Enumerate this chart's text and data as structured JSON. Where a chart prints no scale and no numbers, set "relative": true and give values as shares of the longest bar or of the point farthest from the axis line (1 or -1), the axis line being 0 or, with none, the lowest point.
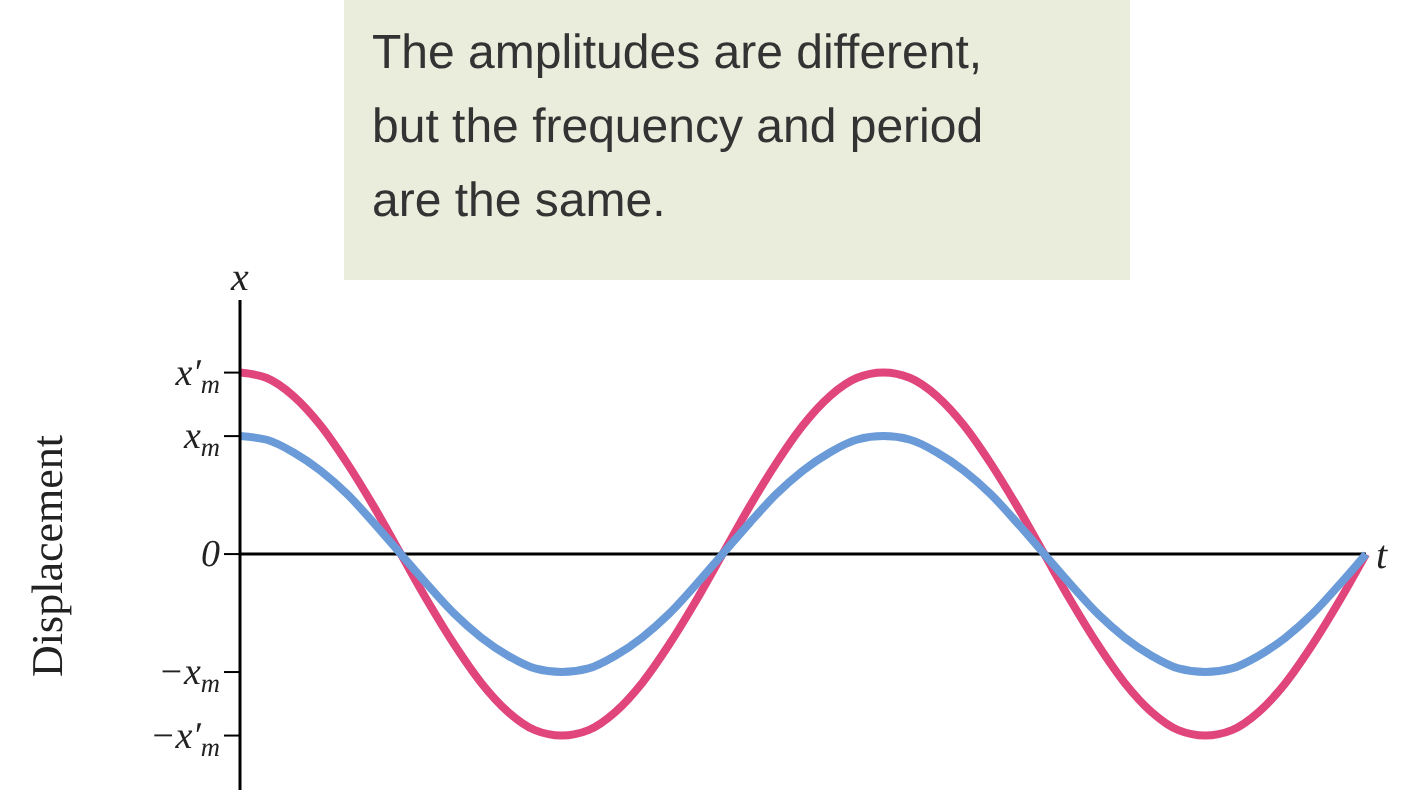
{
  "chart_data": {
    "type": "line",
    "relative": true,
    "categories": [
      null,
      null,
      null,
      null,
      null,
      null,
      null,
      null,
      null,
      null,
      null,
      null,
      null,
      null,
      null,
      null,
      null,
      null,
      null,
      null,
      null,
      null,
      null,
      null,
      null,
      null,
      null,
      null,
      null,
      null,
      null,
      null,
      null,
      null,
      null,
      null,
      null,
      null,
      null,
      null,
      null,
      null,
      null
    ],
    "series": [
      {
        "color": "#e0457b",
        "values": [
          1,
          0.97,
          0.87,
          0.71,
          0.5,
          0.26,
          0,
          -0.26,
          -0.5,
          -0.71,
          -0.87,
          -0.97,
          -1,
          -0.97,
          -0.87,
          -0.71,
          -0.5,
          -0.26,
          0,
          0.26,
          0.5,
          0.71,
          0.87,
          0.97,
          1,
          0.97,
          0.87,
          0.71,
          0.5,
          0.26,
          0,
          -0.26,
          -0.5,
          -0.71,
          -0.87,
          -0.97,
          -1,
          -0.97,
          -0.87,
          -0.71,
          -0.5,
          -0.26,
          0
        ]
      },
      {
        "color": "#6a9bd8",
        "values": [
          0.65,
          0.63,
          0.56,
          0.46,
          0.33,
          0.17,
          0,
          -0.17,
          -0.33,
          -0.46,
          -0.56,
          -0.63,
          -0.65,
          -0.63,
          -0.56,
          -0.46,
          -0.33,
          -0.17,
          0,
          0.17,
          0.33,
          0.46,
          0.56,
          0.63,
          0.65,
          0.63,
          0.56,
          0.46,
          0.33,
          0.17,
          0,
          -0.17,
          -0.33,
          -0.46,
          -0.56,
          -0.63,
          -0.65,
          -0.63,
          -0.56,
          -0.46,
          -0.33,
          -0.17,
          0
        ]
      }
    ],
    "ylabel": "Displacement",
    "xlabel": "t",
    "tick_labels": "y",
    "ref_lines": [
      {
        "axis": "y",
        "value": 0,
        "color": "#000000"
      }
    ],
    "annotations": [
      "The amplitudes are different, but the frequency and period are the same.",
      "x",
      "x′$_{m}$",
      "x$_{m}$",
      "0",
      "−x$_{m}$",
      "−x′$_{m}$"
    ]
  }
}
